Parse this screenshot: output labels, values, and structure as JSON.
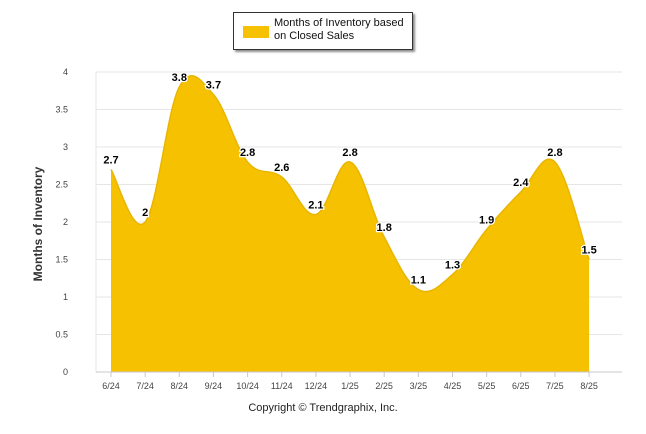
{
  "chart_data": {
    "type": "area",
    "categories": [
      "6/24",
      "7/24",
      "8/24",
      "9/24",
      "10/24",
      "11/24",
      "12/24",
      "1/25",
      "2/25",
      "3/25",
      "4/25",
      "5/25",
      "6/25",
      "7/25",
      "8/25"
    ],
    "series": [
      {
        "name": "Months of Inventory based on Closed Sales",
        "values": [
          2.7,
          2,
          3.8,
          3.7,
          2.8,
          2.6,
          2.1,
          2.8,
          1.8,
          1.1,
          1.3,
          1.9,
          2.4,
          2.8,
          1.5
        ]
      }
    ],
    "data_labels": [
      "2.7",
      "2",
      "3.8",
      "3.7",
      "2.8",
      "2.6",
      "2.1",
      "2.8",
      "1.8",
      "1.1",
      "1.3",
      "1.9",
      "2.4",
      "2.8",
      "1.5"
    ],
    "ylabel": "Months of Inventory",
    "xlabel": "",
    "ylim": [
      0,
      4
    ],
    "yticks": [
      "0",
      "0.5",
      "1",
      "1.5",
      "2",
      "2.5",
      "3",
      "3.5",
      "4"
    ],
    "grid": true,
    "legend_position": "top-center",
    "fill_color": "#f5c100",
    "line_color": "#e8b600"
  },
  "footer": {
    "copyright": "Copyright © Trendgraphix, Inc."
  }
}
